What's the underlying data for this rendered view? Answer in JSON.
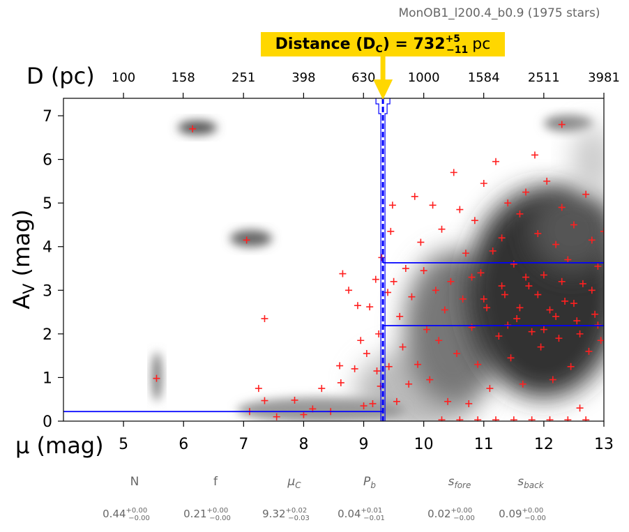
{
  "chart_data": {
    "type": "scatter",
    "subtitle": "MonOB1_l200.4_b0.9 (1975 stars)",
    "annotation": {
      "prefix": "Distance (D",
      "sub": "C",
      "mid": ") = ",
      "value": 732,
      "plus": "+5",
      "minus": "−11",
      "unit": "pc"
    },
    "xlabel": "μ (mag)",
    "x2label": "D (pc)",
    "ylabel": {
      "main": "A",
      "sub": "V",
      "unit": " (mag)"
    },
    "xlim": [
      4,
      13
    ],
    "xticks": [
      5,
      6,
      7,
      8,
      9,
      10,
      11,
      12,
      13
    ],
    "x2lim": [
      63.1,
      3981
    ],
    "x2scale": "log",
    "x2ticks": [
      100,
      158,
      251,
      398,
      630,
      1000,
      1584,
      2511,
      3981
    ],
    "ylim": [
      0,
      7.4
    ],
    "yticks": [
      0,
      1,
      2,
      3,
      4,
      5,
      6,
      7
    ],
    "color": "#ff2020",
    "x": [
      6.15,
      7.05,
      5.55,
      7.35,
      12.3,
      7.25,
      7.35,
      7.1,
      7.55,
      7.85,
      8.0,
      8.15,
      8.3,
      8.45,
      8.6,
      8.62,
      8.65,
      8.75,
      8.85,
      8.9,
      8.95,
      9.0,
      9.05,
      9.1,
      9.15,
      9.2,
      9.22,
      9.25,
      9.28,
      9.3,
      9.4,
      9.42,
      9.45,
      9.48,
      9.5,
      9.55,
      9.6,
      9.65,
      9.7,
      9.75,
      9.8,
      9.85,
      9.9,
      9.95,
      10.0,
      10.05,
      10.1,
      10.15,
      10.2,
      10.25,
      10.3,
      10.35,
      10.4,
      10.45,
      10.5,
      10.55,
      10.6,
      10.65,
      10.7,
      10.75,
      10.8,
      10.85,
      10.9,
      10.95,
      11.0,
      11.05,
      11.1,
      11.15,
      11.2,
      11.25,
      11.3,
      11.35,
      11.4,
      11.45,
      11.5,
      11.55,
      11.6,
      11.65,
      11.7,
      11.75,
      11.8,
      11.85,
      11.9,
      11.95,
      12.0,
      12.05,
      12.1,
      12.15,
      12.2,
      12.25,
      12.3,
      12.35,
      12.4,
      12.45,
      12.5,
      12.55,
      12.6,
      12.65,
      12.7,
      12.75,
      12.8,
      12.85,
      12.9,
      12.95,
      13.0,
      10.3,
      10.6,
      10.9,
      11.2,
      11.5,
      11.8,
      12.1,
      12.4,
      12.7,
      11.0,
      11.3,
      11.6,
      11.9,
      12.2,
      12.5,
      12.8,
      11.4,
      12.0,
      12.6,
      11.7,
      12.3,
      10.8,
      12.9
    ],
    "values": [
      6.7,
      4.15,
      0.98,
      2.35,
      6.8,
      0.75,
      0.47,
      0.22,
      0.1,
      0.48,
      0.15,
      0.28,
      0.75,
      0.22,
      1.27,
      0.88,
      3.38,
      3.0,
      1.2,
      2.65,
      1.85,
      0.35,
      1.55,
      2.62,
      0.4,
      3.25,
      1.15,
      2.0,
      0.8,
      3.75,
      2.95,
      1.25,
      4.35,
      4.95,
      3.2,
      0.45,
      2.4,
      1.7,
      3.5,
      0.85,
      2.85,
      5.15,
      1.3,
      4.1,
      3.45,
      2.1,
      0.95,
      4.95,
      3.0,
      1.85,
      4.4,
      2.55,
      0.45,
      3.2,
      5.7,
      1.55,
      4.85,
      2.8,
      3.85,
      0.4,
      2.15,
      4.6,
      1.3,
      3.4,
      5.45,
      2.6,
      0.75,
      3.9,
      5.95,
      1.95,
      4.2,
      2.9,
      5.0,
      1.45,
      3.6,
      2.35,
      4.75,
      0.85,
      5.25,
      3.1,
      2.05,
      6.1,
      4.3,
      1.7,
      3.35,
      5.5,
      2.55,
      0.95,
      4.05,
      1.9,
      4.9,
      2.75,
      3.7,
      1.25,
      4.5,
      2.3,
      0.3,
      3.15,
      5.2,
      1.6,
      4.15,
      2.45,
      3.55,
      1.85,
      4.35,
      0.03,
      0.03,
      0.03,
      0.03,
      0.03,
      0.03,
      0.03,
      0.03,
      0.03,
      2.8,
      3.1,
      2.6,
      2.9,
      2.4,
      2.7,
      3.0,
      2.2,
      2.1,
      2.0,
      3.3,
      3.2,
      3.3,
      2.2
    ],
    "model": {
      "color": "#0000ff",
      "mu_c": 9.32,
      "near_av": 0.22,
      "far_av": [
        2.19,
        3.63
      ]
    },
    "params": [
      {
        "name": "N",
        "value": 0.44,
        "plus": "+0.00",
        "minus": "−0.00"
      },
      {
        "name": "f",
        "value": 0.21,
        "plus": "+0.00",
        "minus": "−0.00"
      },
      {
        "name": "μ",
        "sub": "C",
        "value": 9.32,
        "plus": "+0.02",
        "minus": "−0.03"
      },
      {
        "name": "P",
        "sub": "b",
        "value": 0.04,
        "plus": "+0.01",
        "minus": "−0.01"
      },
      {
        "name": "s",
        "sub": "fore",
        "value": 0.02,
        "plus": "+0.00",
        "minus": "−0.00"
      },
      {
        "name": "s",
        "sub": "back",
        "value": 0.09,
        "plus": "+0.00",
        "minus": "−0.00"
      }
    ]
  }
}
